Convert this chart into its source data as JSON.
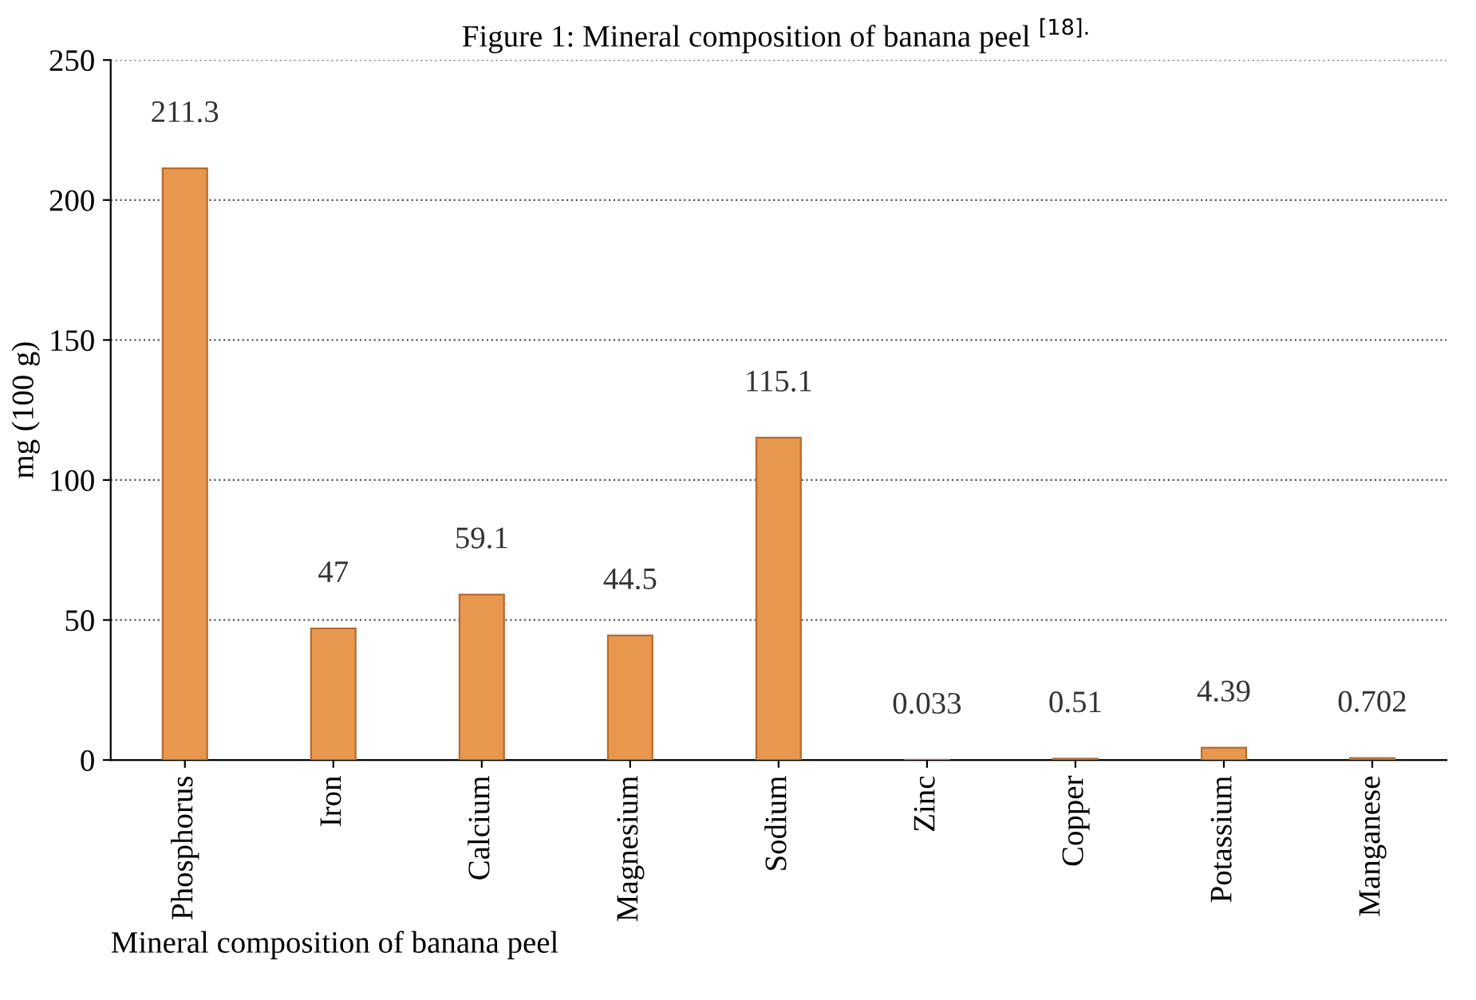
{
  "chart_data": {
    "type": "bar",
    "title": "Figure 1: Mineral composition of banana peel $^{[18].}$",
    "xlabel": "Mineral composition of banana peel",
    "ylabel": "mg (100 g)",
    "categories": [
      "Phosphorus",
      "Iron",
      "Calcium",
      "Magnesium",
      "Sodium",
      "Zinc",
      "Copper",
      "Potassium",
      "Manganese"
    ],
    "values": [
      211.3,
      47,
      59.1,
      44.5,
      115.1,
      0.033,
      0.51,
      4.39,
      0.702
    ],
    "color": "#e8974f",
    "ylim": [
      0,
      250
    ],
    "yticks": [
      0,
      50,
      100,
      150,
      200,
      250
    ],
    "grid": "y",
    "data_labels": true
  }
}
